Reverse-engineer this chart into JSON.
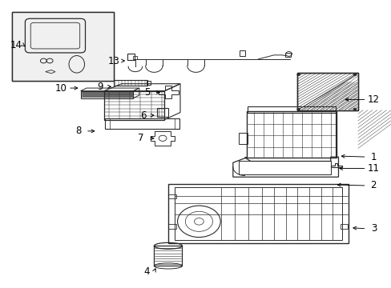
{
  "background_color": "#ffffff",
  "line_color": "#2a2a2a",
  "label_color": "#000000",
  "label_fontsize": 8.5,
  "fig_width": 4.89,
  "fig_height": 3.6,
  "dpi": 100,
  "label_positions": {
    "1": [
      0.955,
      0.455,
      0.865,
      0.458
    ],
    "2": [
      0.955,
      0.355,
      0.855,
      0.358
    ],
    "3": [
      0.955,
      0.205,
      0.895,
      0.208
    ],
    "4": [
      0.375,
      0.055,
      0.4,
      0.075
    ],
    "5": [
      0.375,
      0.68,
      0.415,
      0.68
    ],
    "6": [
      0.365,
      0.6,
      0.4,
      0.6
    ],
    "7": [
      0.36,
      0.52,
      0.4,
      0.52
    ],
    "8": [
      0.2,
      0.545,
      0.248,
      0.545
    ],
    "9": [
      0.255,
      0.7,
      0.29,
      0.7
    ],
    "10": [
      0.155,
      0.695,
      0.205,
      0.695
    ],
    "11": [
      0.955,
      0.415,
      0.86,
      0.415
    ],
    "12": [
      0.955,
      0.655,
      0.875,
      0.655
    ],
    "13": [
      0.29,
      0.79,
      0.325,
      0.79
    ],
    "14": [
      0.04,
      0.845,
      0.068,
      0.835
    ]
  }
}
